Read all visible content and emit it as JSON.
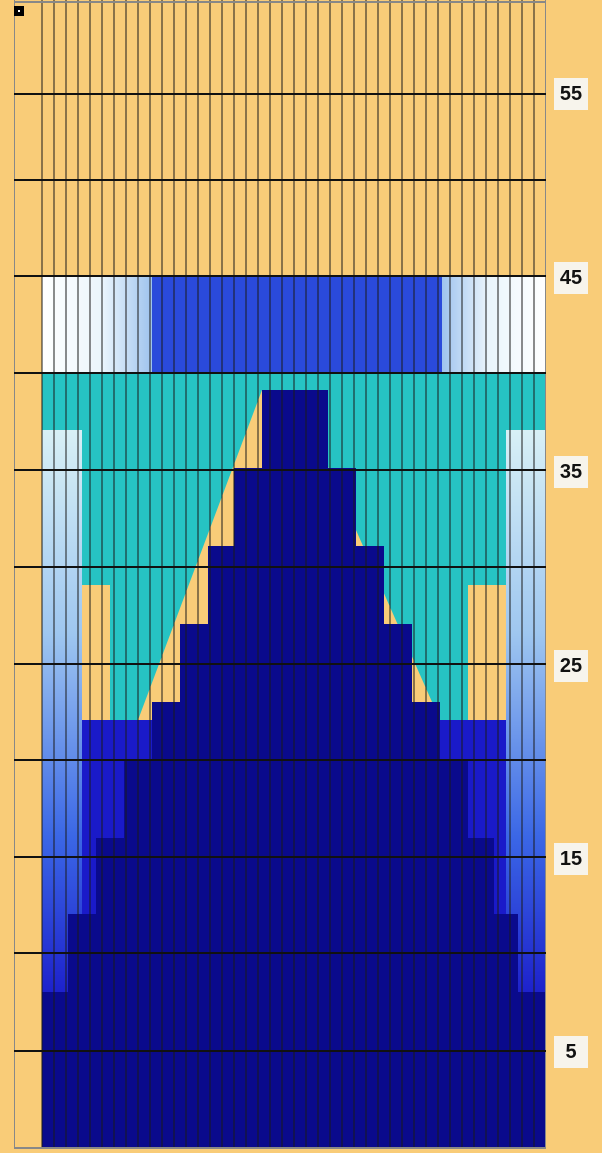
{
  "pattern": {
    "columns": 42,
    "rows": 59,
    "colors": {
      "background": "#F9CC78",
      "grid_line": "#1A1A1A",
      "navy": "#0A0A8C",
      "deep_blue": "#1A1AC9",
      "royal_blue": "#2A4ADB",
      "teal": "#26C3C3",
      "white": "#FFFFFF",
      "pale_blue": "#A9C7F0"
    }
  },
  "row_labels": [
    "55",
    "45",
    "35",
    "25",
    "15",
    "5"
  ]
}
